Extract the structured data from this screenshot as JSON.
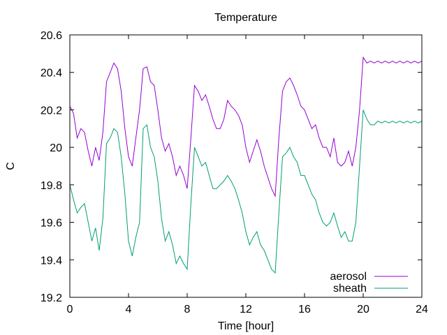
{
  "chart_data": {
    "type": "line",
    "title": "Temperature",
    "xlabel": "Time [hour]",
    "ylabel": "C",
    "xlim": [
      0,
      24
    ],
    "ylim": [
      19.2,
      20.6
    ],
    "xticks": [
      "0",
      "4",
      "8",
      "12",
      "16",
      "20",
      "24"
    ],
    "yticks": [
      "19.2",
      "19.4",
      "19.6",
      "19.8",
      "20",
      "20.2",
      "20.4",
      "20.6"
    ],
    "grid": false,
    "legend_position": "bottom-right",
    "series": [
      {
        "name": "aerosol",
        "color": "#9400d3",
        "x": [
          0,
          0.25,
          0.5,
          0.75,
          1,
          1.25,
          1.5,
          1.75,
          2,
          2.25,
          2.5,
          2.75,
          3,
          3.25,
          3.5,
          3.75,
          4,
          4.25,
          4.5,
          4.75,
          5,
          5.25,
          5.5,
          5.75,
          6,
          6.25,
          6.5,
          6.75,
          7,
          7.25,
          7.5,
          7.75,
          8,
          8.25,
          8.5,
          8.75,
          9,
          9.25,
          9.5,
          9.75,
          10,
          10.25,
          10.5,
          10.75,
          11,
          11.25,
          11.5,
          11.75,
          12,
          12.25,
          12.5,
          12.75,
          13,
          13.25,
          13.5,
          13.75,
          14,
          14.25,
          14.5,
          14.75,
          15,
          15.25,
          15.5,
          15.75,
          16,
          16.25,
          16.5,
          16.75,
          17,
          17.25,
          17.5,
          17.75,
          18,
          18.25,
          18.5,
          18.75,
          19,
          19.25,
          19.5,
          19.75,
          20,
          20.25,
          20.5,
          20.75,
          21,
          21.25,
          21.5,
          21.75,
          22,
          22.25,
          22.5,
          22.75,
          23,
          23.25,
          23.5,
          23.75,
          24
        ],
        "values": [
          20.22,
          20.18,
          20.05,
          20.1,
          20.08,
          19.98,
          19.9,
          20.0,
          19.93,
          20.08,
          20.35,
          20.4,
          20.45,
          20.42,
          20.3,
          20.1,
          19.95,
          19.9,
          20.05,
          20.2,
          20.42,
          20.43,
          20.35,
          20.33,
          20.2,
          20.05,
          19.98,
          20.02,
          19.95,
          19.85,
          19.9,
          19.85,
          19.78,
          20.05,
          20.33,
          20.3,
          20.25,
          20.28,
          20.22,
          20.15,
          20.1,
          20.1,
          20.15,
          20.25,
          20.22,
          20.2,
          20.17,
          20.12,
          20.0,
          19.92,
          19.98,
          20.04,
          19.98,
          19.9,
          19.84,
          19.78,
          19.74,
          20.05,
          20.3,
          20.35,
          20.37,
          20.33,
          20.28,
          20.22,
          20.2,
          20.15,
          20.1,
          20.12,
          20.05,
          20.0,
          20.0,
          19.95,
          20.05,
          19.92,
          19.9,
          19.92,
          19.98,
          19.9,
          20.0,
          20.2,
          20.48,
          20.45,
          20.46,
          20.45,
          20.46,
          20.45,
          20.46,
          20.45,
          20.46,
          20.45,
          20.46,
          20.45,
          20.46,
          20.45,
          20.46,
          20.45,
          20.46
        ]
      },
      {
        "name": "sheath",
        "color": "#009e73",
        "x": [
          0,
          0.25,
          0.5,
          0.75,
          1,
          1.25,
          1.5,
          1.75,
          2,
          2.25,
          2.5,
          2.75,
          3,
          3.25,
          3.5,
          3.75,
          4,
          4.25,
          4.5,
          4.75,
          5,
          5.25,
          5.5,
          5.75,
          6,
          6.25,
          6.5,
          6.75,
          7,
          7.25,
          7.5,
          7.75,
          8,
          8.25,
          8.5,
          8.75,
          9,
          9.25,
          9.5,
          9.75,
          10,
          10.25,
          10.5,
          10.75,
          11,
          11.25,
          11.5,
          11.75,
          12,
          12.25,
          12.5,
          12.75,
          13,
          13.25,
          13.5,
          13.75,
          14,
          14.25,
          14.5,
          14.75,
          15,
          15.25,
          15.5,
          15.75,
          16,
          16.25,
          16.5,
          16.75,
          17,
          17.25,
          17.5,
          17.75,
          18,
          18.25,
          18.5,
          18.75,
          19,
          19.25,
          19.5,
          19.75,
          20,
          20.25,
          20.5,
          20.75,
          21,
          21.25,
          21.5,
          21.75,
          22,
          22.25,
          22.5,
          22.75,
          23,
          23.25,
          23.5,
          23.75,
          24
        ],
        "values": [
          19.8,
          19.72,
          19.65,
          19.68,
          19.7,
          19.6,
          19.5,
          19.57,
          19.45,
          19.62,
          20.02,
          20.05,
          20.1,
          20.08,
          19.95,
          19.75,
          19.5,
          19.42,
          19.52,
          19.6,
          20.1,
          20.12,
          20.0,
          19.95,
          19.82,
          19.62,
          19.5,
          19.55,
          19.48,
          19.38,
          19.42,
          19.38,
          19.35,
          19.7,
          20.0,
          19.95,
          19.9,
          19.92,
          19.85,
          19.78,
          19.78,
          19.8,
          19.82,
          19.85,
          19.82,
          19.78,
          19.72,
          19.65,
          19.55,
          19.48,
          19.52,
          19.55,
          19.48,
          19.45,
          19.4,
          19.35,
          19.33,
          19.65,
          19.95,
          19.97,
          20.0,
          19.95,
          19.92,
          19.85,
          19.85,
          19.8,
          19.75,
          19.72,
          19.65,
          19.6,
          19.58,
          19.6,
          19.65,
          19.58,
          19.52,
          19.55,
          19.5,
          19.5,
          19.6,
          19.9,
          20.2,
          20.15,
          20.12,
          20.12,
          20.14,
          20.13,
          20.14,
          20.13,
          20.14,
          20.13,
          20.14,
          20.13,
          20.14,
          20.13,
          20.14,
          20.13,
          20.14
        ]
      }
    ]
  }
}
